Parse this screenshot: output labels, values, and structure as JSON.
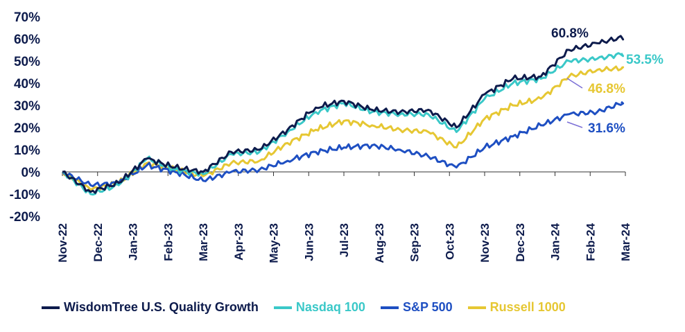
{
  "chart_data": {
    "type": "line",
    "xlabel": "",
    "ylabel": "",
    "ylim": [
      -20,
      70
    ],
    "y_ticks": [
      "70%",
      "60%",
      "50%",
      "40%",
      "30%",
      "20%",
      "10%",
      "0%",
      "-10%",
      "-20%"
    ],
    "x_ticks": [
      "Nov-22",
      "Dec-22",
      "Jan-23",
      "Feb-23",
      "Mar-23",
      "Apr-23",
      "May-23",
      "Jun-23",
      "Jul-23",
      "Aug-23",
      "Sep-23",
      "Oct-23",
      "Nov-23",
      "Dec-23",
      "Jan-24",
      "Feb-24",
      "Mar-24"
    ],
    "grid": false,
    "legend_position": "bottom",
    "series": [
      {
        "name": "WisdomTree U.S. Quality Growth",
        "color": "#0d1b4c",
        "end_label": "60.8%",
        "values": [
          0,
          -9,
          -5,
          6,
          2,
          0,
          9,
          10,
          19,
          29,
          32,
          28,
          27,
          28,
          20,
          35,
          42,
          43,
          55,
          58,
          61
        ]
      },
      {
        "name": "Nasdaq 100",
        "color": "#3ac8c8",
        "end_label": "53.5%",
        "values": [
          0,
          -10,
          -6,
          6,
          1,
          -1,
          8,
          9,
          18,
          27,
          31,
          27,
          26,
          26,
          18,
          33,
          40,
          42,
          50,
          51,
          53.5
        ]
      },
      {
        "name": "S&P 500",
        "color": "#1e4fc2",
        "end_label": "31.6%",
        "values": [
          0,
          -6,
          -5,
          3,
          0,
          -4,
          0,
          1,
          5,
          9,
          11,
          12,
          10,
          7,
          2,
          11,
          16,
          21,
          26,
          27,
          31.6
        ]
      },
      {
        "name": "Russell 1000",
        "color": "#e6c733",
        "end_label": "46.8%",
        "values": [
          0,
          -8,
          -5,
          4,
          1,
          -2,
          4,
          5,
          13,
          19,
          23,
          21,
          19,
          18,
          11,
          24,
          30,
          33,
          43,
          46,
          46.8
        ]
      }
    ]
  }
}
